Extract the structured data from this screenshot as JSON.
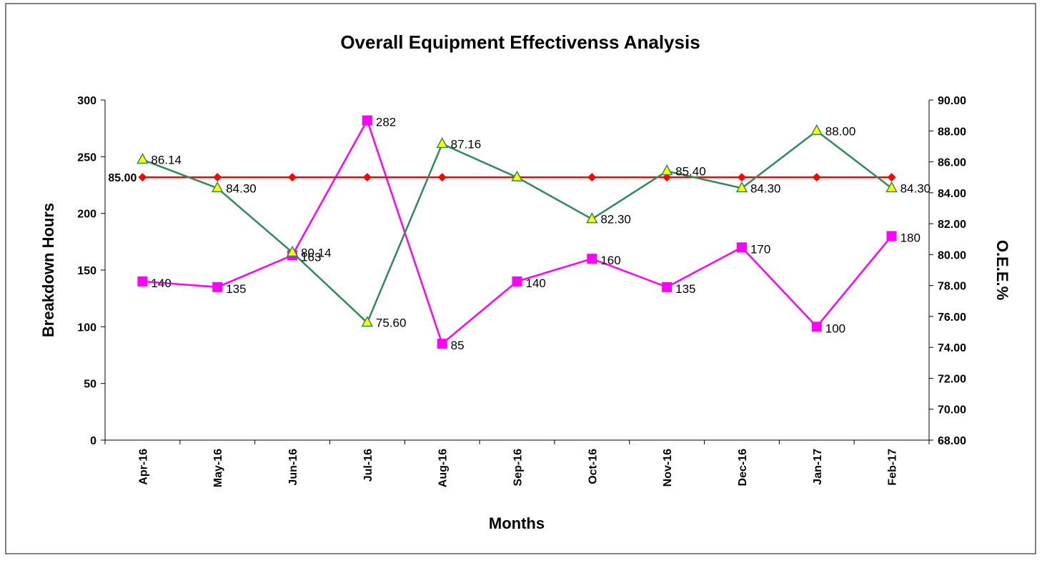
{
  "chart_data": {
    "type": "line",
    "title": "Overall Equipment Effectivenss Analysis",
    "x_label": "Months",
    "y_label": "Breakdown Hours",
    "y2_label": "O.E.E.%",
    "categories": [
      "Apr-16",
      "May-16",
      "Jun-16",
      "Jul-16",
      "Aug-16",
      "Sep-16",
      "Oct-16",
      "Nov-16",
      "Dec-16",
      "Jan-17",
      "Feb-17"
    ],
    "ylim": [
      0,
      300
    ],
    "yticks": [
      0,
      50,
      100,
      150,
      200,
      250,
      300
    ],
    "y2lim": [
      68,
      90
    ],
    "y2ticks": [
      {
        "value": 68,
        "label": "68.00"
      },
      {
        "value": 70,
        "label": "70.00"
      },
      {
        "value": 72,
        "label": "72.00"
      },
      {
        "value": 74,
        "label": "74.00"
      },
      {
        "value": 76,
        "label": "76.00"
      },
      {
        "value": 78,
        "label": "78.00"
      },
      {
        "value": 80,
        "label": "80.00"
      },
      {
        "value": 82,
        "label": "82.00"
      },
      {
        "value": 84,
        "label": "84.00"
      },
      {
        "value": 86,
        "label": "86.00"
      },
      {
        "value": 88,
        "label": "88.00"
      },
      {
        "value": 90,
        "label": "90.00"
      }
    ],
    "grid": false,
    "series": [
      {
        "color": "#ff00ff",
        "marker": "square",
        "axis": "y",
        "values": [
          140,
          135,
          163,
          282,
          85,
          140,
          160,
          135,
          170,
          100,
          180
        ]
      },
      {
        "color": "#ff0000",
        "marker": "diamond",
        "axis": "y2",
        "values": [
          85,
          85,
          85,
          85,
          85,
          85,
          85,
          85,
          85,
          85,
          85
        ],
        "value_labels": [
          "85.00",
          null,
          null,
          null,
          null,
          null,
          null,
          null,
          null,
          null,
          null
        ]
      },
      {
        "color": "#2e8b57",
        "marker": "triangle",
        "marker_fill": "#ffff00",
        "axis": "y2",
        "values": [
          86.14,
          84.3,
          80.14,
          75.6,
          87.16,
          85,
          82.3,
          85.4,
          84.3,
          88,
          84.3
        ],
        "value_labels": [
          "86.14",
          "84.30",
          "80.14",
          "75.60",
          "87.16",
          null,
          "82.30",
          "85.40",
          "84.30",
          "88.00",
          "84.30"
        ]
      }
    ]
  }
}
